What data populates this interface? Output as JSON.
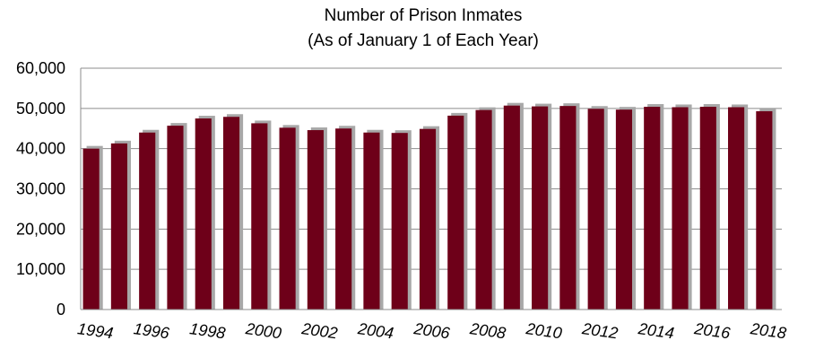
{
  "chart_data": {
    "type": "bar",
    "title": "Number of Prison Inmates",
    "subtitle": "(As of January 1 of Each Year)",
    "xlabel": "",
    "ylabel": "",
    "categories": [
      "1994",
      "1995",
      "1996",
      "1997",
      "1998",
      "1999",
      "2000",
      "2001",
      "2002",
      "2003",
      "2004",
      "2005",
      "2006",
      "2007",
      "2008",
      "2009",
      "2010",
      "2011",
      "2012",
      "2013",
      "2014",
      "2015",
      "2016",
      "2017",
      "2018"
    ],
    "x_tick_labels": [
      "1994",
      "1996",
      "1998",
      "2000",
      "2002",
      "2004",
      "2006",
      "2008",
      "2010",
      "2012",
      "2014",
      "2016",
      "2018"
    ],
    "values": [
      40000,
      41300,
      44000,
      45700,
      47500,
      47900,
      46300,
      45200,
      44600,
      45000,
      44000,
      43900,
      44900,
      48200,
      49600,
      50700,
      50500,
      50600,
      49900,
      49700,
      50400,
      50300,
      50400,
      50300,
      49300
    ],
    "ylim": [
      0,
      60000
    ],
    "y_ticks": [
      "0",
      "10,000",
      "20,000",
      "30,000",
      "40,000",
      "50,000",
      "60,000"
    ],
    "grid": true,
    "bar_color": "#6E0019",
    "bar_shadow_color": "#a8a8a8"
  }
}
